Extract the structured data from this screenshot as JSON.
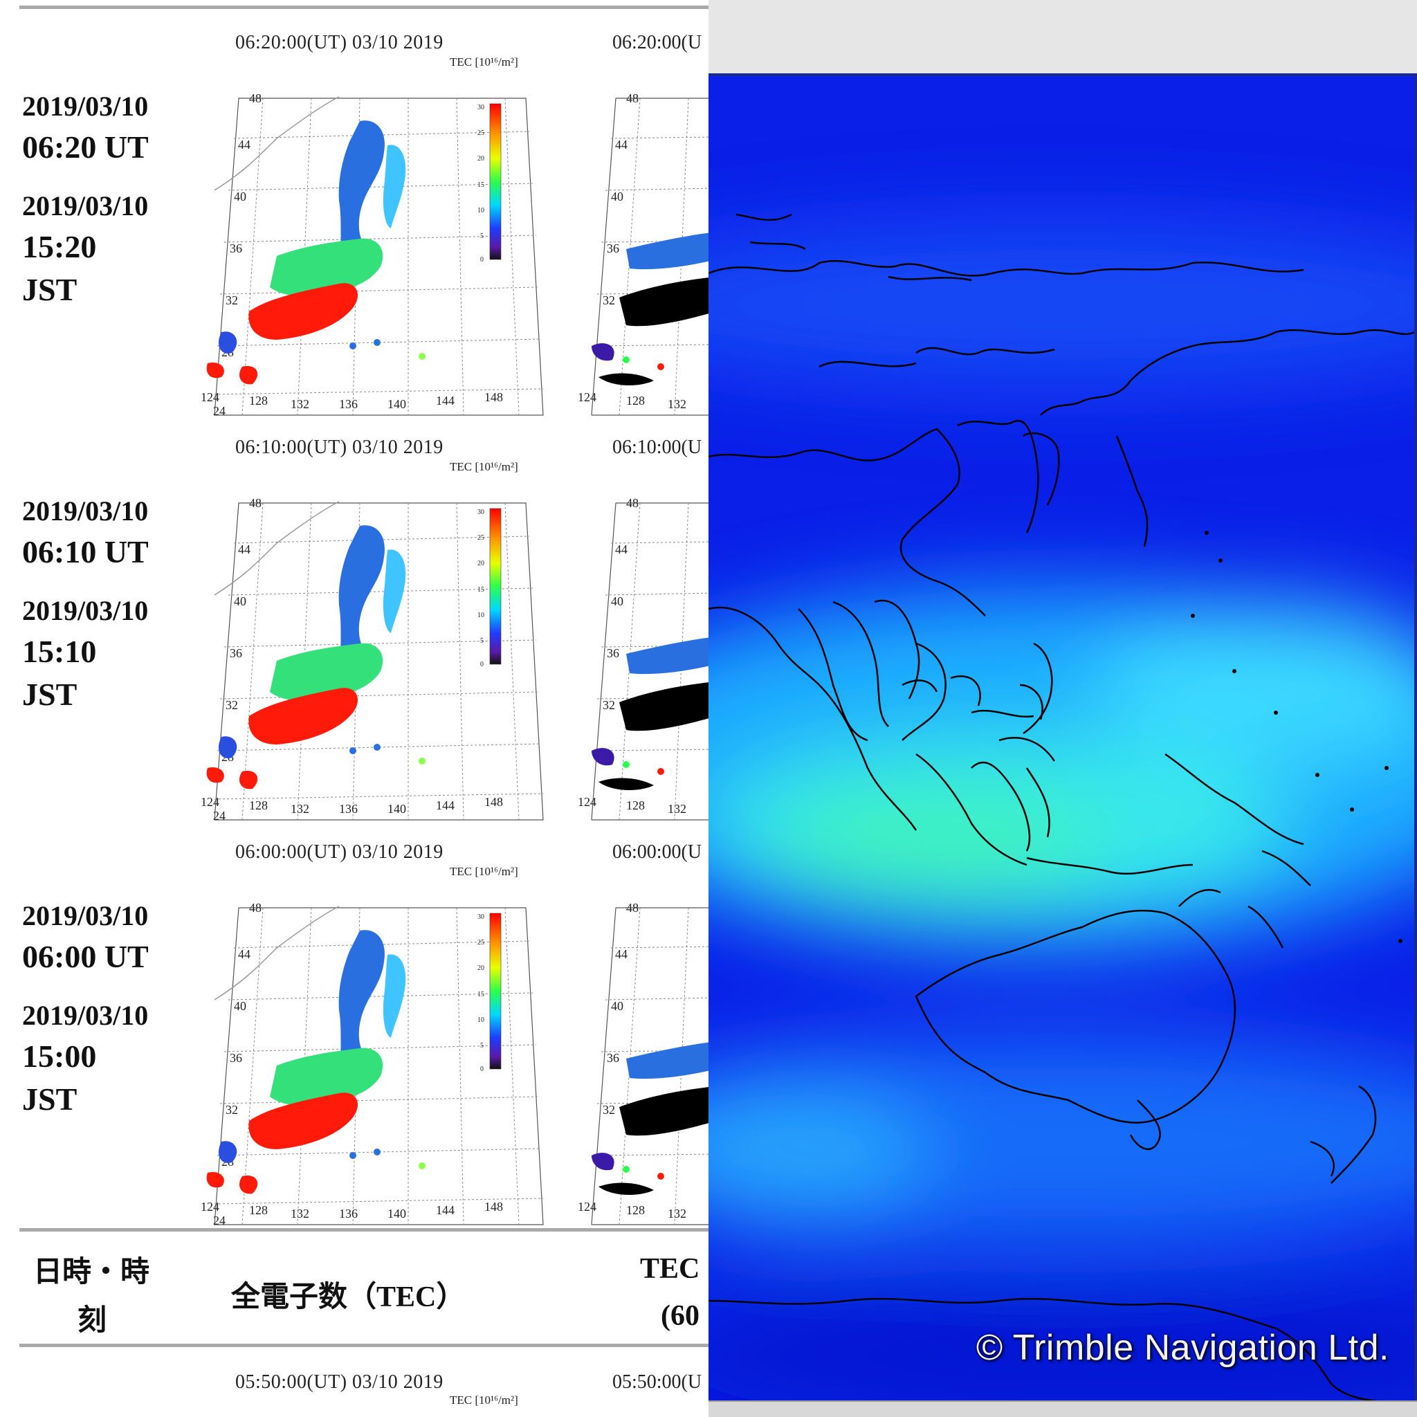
{
  "rows": [
    {
      "ut_date": "2019/03/10",
      "ut_time": "06:20 UT",
      "jst_date": "2019/03/10",
      "jst_time": "15:20",
      "jst_label": "JST",
      "map_title": "06:20:00(UT)  03/10 2019",
      "map2_title": "06:20:00(U"
    },
    {
      "ut_date": "2019/03/10",
      "ut_time": "06:10 UT",
      "jst_date": "2019/03/10",
      "jst_time": "15:10",
      "jst_label": "JST",
      "map_title": "06:10:00(UT)  03/10 2019",
      "map2_title": "06:10:00(U"
    },
    {
      "ut_date": "2019/03/10",
      "ut_time": "06:00 UT",
      "jst_date": "2019/03/10",
      "jst_time": "15:00",
      "jst_label": "JST",
      "map_title": "06:00:00(UT)  03/10 2019",
      "map2_title": "06:00:00(U"
    }
  ],
  "last_row": {
    "map_title": "05:50:00(UT)  03/10 2019",
    "map2_title": "05:50:00(U"
  },
  "tec_unit": "TEC [10¹⁶/m²]",
  "colorbar_ticks": [
    "30",
    "25",
    "20",
    "15",
    "10",
    "5",
    "0"
  ],
  "lat_ticks": [
    "48",
    "44",
    "40",
    "36",
    "32",
    "28",
    "24"
  ],
  "lon_ticks": [
    "124",
    "128",
    "132",
    "136",
    "140",
    "144",
    "148"
  ],
  "right_lon_ticks": [
    "124",
    "128",
    "132"
  ],
  "header": {
    "col1_line1": "日時・時",
    "col1_line2": "刻",
    "col2": "全電子数（TEC）",
    "col3_line1": "TEC",
    "col3_line2": "(60"
  },
  "copyright": "© Trimble Navigation Ltd.",
  "colors": {
    "red": "#ff1a0a",
    "green": "#33e07a",
    "cyan": "#3fd8ff",
    "blue": "#2a6fe0",
    "deep_blue": "#0a1fe8",
    "black": "#000000"
  }
}
